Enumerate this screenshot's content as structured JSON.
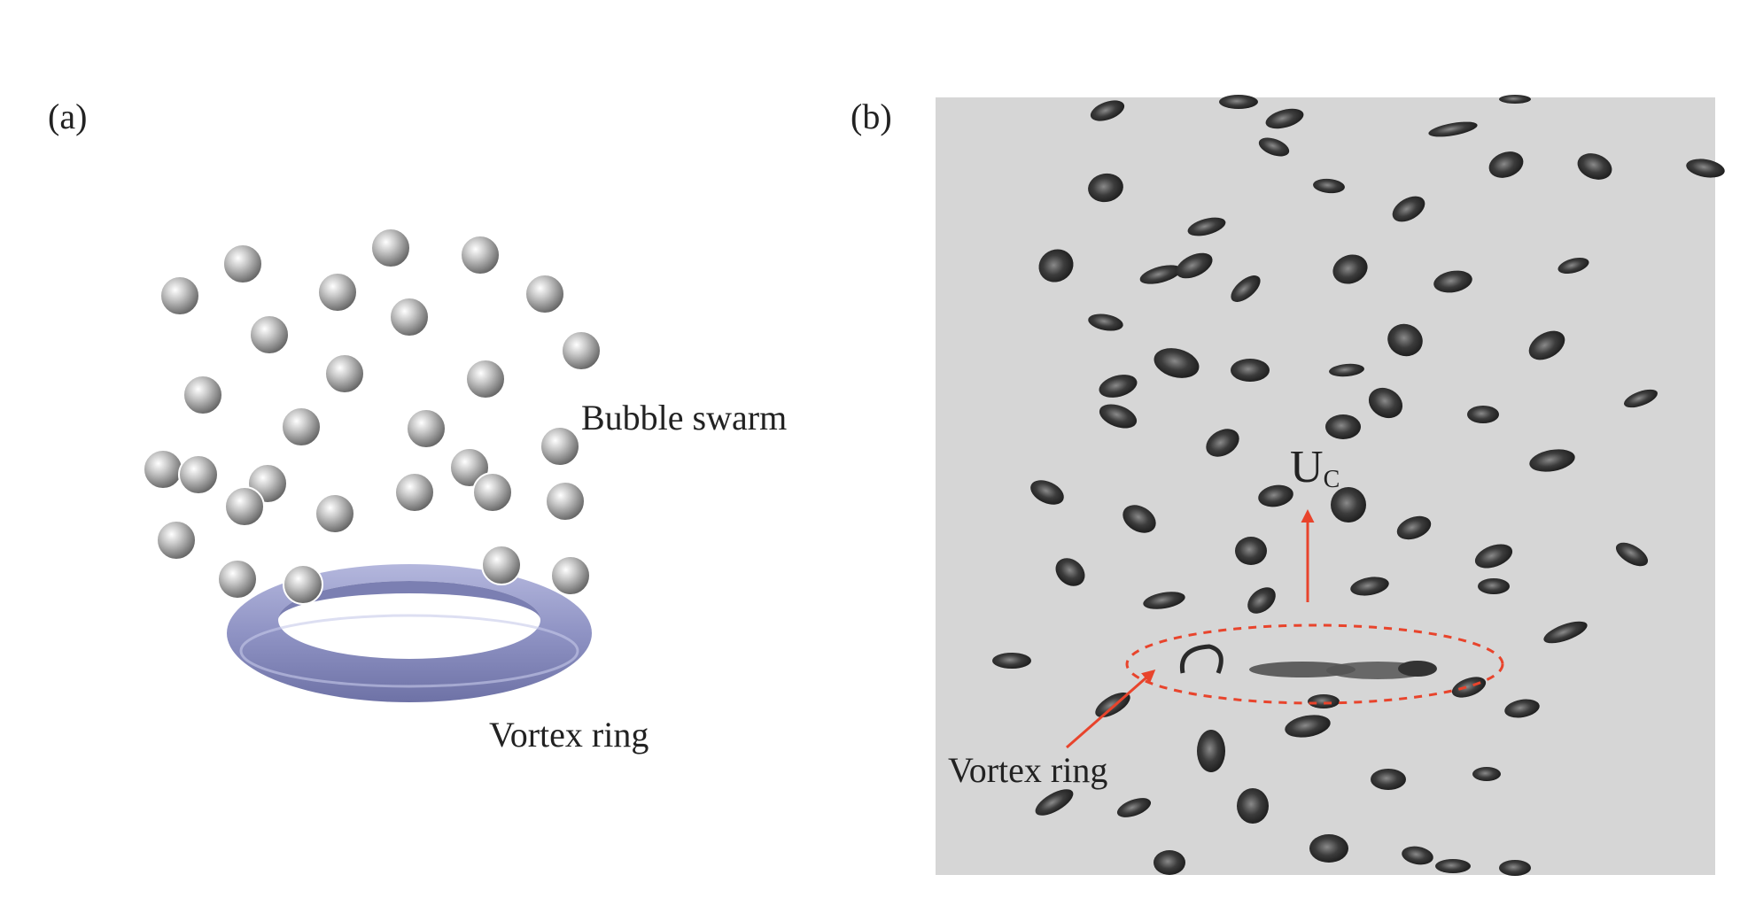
{
  "panels": {
    "a": {
      "label": "(a)",
      "annotations": {
        "bubble_swarm": "Bubble swarm",
        "vortex_ring": "Vortex ring"
      }
    },
    "b": {
      "label": "(b)",
      "annotations": {
        "vortex_ring": "Vortex ring",
        "velocity_symbol": "U",
        "velocity_subscript": "C"
      }
    }
  },
  "colors": {
    "torus": "#8f93c4",
    "photo_background": "#d6d6d6",
    "arrow": "#e8442c",
    "bubble_dark": "#2e2e2e"
  }
}
